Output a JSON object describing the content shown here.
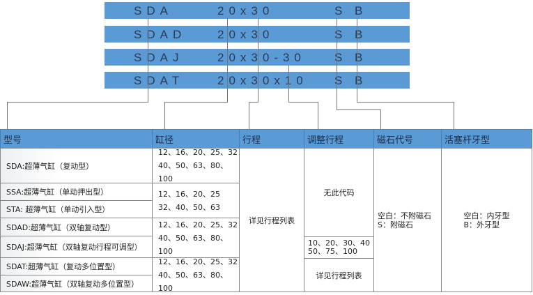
{
  "codes": [
    {
      "model": "SDA",
      "size": "20x30",
      "magnet": "S",
      "rod": "B"
    },
    {
      "model": "SDAD",
      "size": "20x30",
      "magnet": "S",
      "rod": "B"
    },
    {
      "model": "SDAJ",
      "size": "20x30-30",
      "magnet": "S",
      "rod": "B"
    },
    {
      "model": "SDAT",
      "size": "20x30x10",
      "magnet": "S",
      "rod": "B"
    }
  ],
  "headers": [
    "型号",
    "缸径",
    "行程",
    "调整行程",
    "磁石代号",
    "活塞杆牙型"
  ],
  "models": [
    "SDA:超薄气缸（复动型）",
    "SSA:超薄气缸（单动押出型）",
    "STA: 超薄气缸（单动引入型）",
    "SDAD:超薄气缸（双轴复动型）",
    "SDAJ:超薄气缸（双轴复动行程可调型）",
    "SDAT:超薄气缸（复动多位置型）",
    "SDAW:超薄气缸（双轴复动多位置型）"
  ],
  "bores": [
    [
      "12、16、20、25、32",
      "40、50、63、80、100"
    ],
    [
      "12、16、20、25",
      "32、40、50、63"
    ],
    [
      "12、16、20、25、32",
      "40、50、63、80、100"
    ],
    [
      "12、16、20、25、32",
      "40、50、63、80、100"
    ]
  ],
  "stroke": "详见行程列表",
  "adjust": {
    "none": "无此代码",
    "values": [
      "10、20、30、40",
      "50、75、100"
    ],
    "see": "详见行程列表"
  },
  "magnet": [
    "空白：不附磁石",
    "S：附磁石"
  ],
  "rod": [
    "空白：内牙型",
    "B：外牙型"
  ],
  "colors": {
    "accent": "#5b9bd5"
  }
}
